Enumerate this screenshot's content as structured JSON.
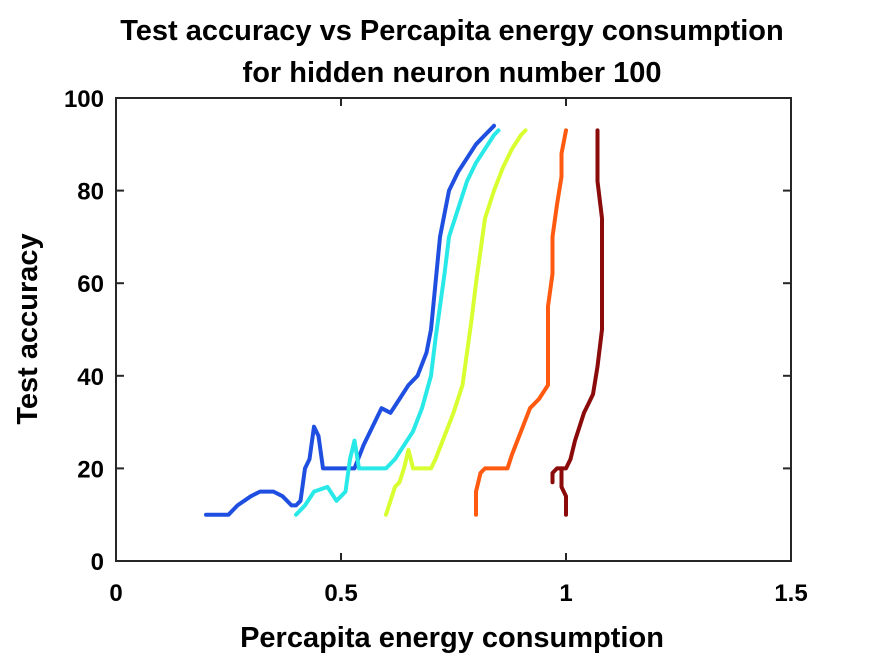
{
  "chart_data": {
    "type": "line",
    "title": "Test accuracy vs Percapita energy consumption",
    "subtitle": "for hidden neuron number 100",
    "xlabel": "Percapita energy consumption",
    "ylabel": "Test accuracy",
    "xlim": [
      0,
      1.5
    ],
    "ylim": [
      0,
      100
    ],
    "xticks": [
      0,
      0.5,
      1,
      1.5
    ],
    "xtick_labels": [
      "0",
      "0.5",
      "1",
      "1.5"
    ],
    "yticks": [
      0,
      20,
      40,
      60,
      80,
      100
    ],
    "ytick_labels": [
      "0",
      "20",
      "40",
      "60",
      "80",
      "100"
    ],
    "grid": false,
    "series": [
      {
        "color": "#1f4fe0",
        "points": [
          [
            0.2,
            10
          ],
          [
            0.25,
            10
          ],
          [
            0.27,
            12
          ],
          [
            0.3,
            14
          ],
          [
            0.32,
            15
          ],
          [
            0.35,
            15
          ],
          [
            0.37,
            14
          ],
          [
            0.39,
            12
          ],
          [
            0.4,
            12
          ],
          [
            0.41,
            13
          ],
          [
            0.42,
            20
          ],
          [
            0.43,
            22
          ],
          [
            0.44,
            29
          ],
          [
            0.45,
            27
          ],
          [
            0.46,
            20
          ],
          [
            0.5,
            20
          ],
          [
            0.53,
            20
          ],
          [
            0.55,
            25
          ],
          [
            0.57,
            29
          ],
          [
            0.59,
            33
          ],
          [
            0.61,
            32
          ],
          [
            0.63,
            35
          ],
          [
            0.65,
            38
          ],
          [
            0.67,
            40
          ],
          [
            0.69,
            45
          ],
          [
            0.7,
            50
          ],
          [
            0.71,
            60
          ],
          [
            0.72,
            70
          ],
          [
            0.73,
            75
          ],
          [
            0.74,
            80
          ],
          [
            0.76,
            84
          ],
          [
            0.78,
            87
          ],
          [
            0.8,
            90
          ],
          [
            0.82,
            92
          ],
          [
            0.84,
            94
          ]
        ]
      },
      {
        "color": "#29e8e8",
        "points": [
          [
            0.4,
            10
          ],
          [
            0.42,
            12
          ],
          [
            0.44,
            15
          ],
          [
            0.47,
            16
          ],
          [
            0.49,
            13
          ],
          [
            0.51,
            15
          ],
          [
            0.52,
            22
          ],
          [
            0.53,
            26
          ],
          [
            0.54,
            20
          ],
          [
            0.6,
            20
          ],
          [
            0.62,
            22
          ],
          [
            0.64,
            25
          ],
          [
            0.66,
            28
          ],
          [
            0.68,
            33
          ],
          [
            0.7,
            40
          ],
          [
            0.71,
            48
          ],
          [
            0.72,
            55
          ],
          [
            0.73,
            62
          ],
          [
            0.74,
            70
          ],
          [
            0.76,
            76
          ],
          [
            0.78,
            82
          ],
          [
            0.8,
            86
          ],
          [
            0.82,
            89
          ],
          [
            0.84,
            92
          ],
          [
            0.85,
            93
          ]
        ]
      },
      {
        "color": "#d8ff30",
        "points": [
          [
            0.6,
            10
          ],
          [
            0.61,
            13
          ],
          [
            0.62,
            16
          ],
          [
            0.63,
            17
          ],
          [
            0.64,
            20
          ],
          [
            0.65,
            24
          ],
          [
            0.66,
            20
          ],
          [
            0.7,
            20
          ],
          [
            0.71,
            22
          ],
          [
            0.73,
            27
          ],
          [
            0.75,
            32
          ],
          [
            0.77,
            38
          ],
          [
            0.78,
            45
          ],
          [
            0.79,
            52
          ],
          [
            0.8,
            60
          ],
          [
            0.81,
            67
          ],
          [
            0.82,
            74
          ],
          [
            0.84,
            80
          ],
          [
            0.86,
            85
          ],
          [
            0.88,
            89
          ],
          [
            0.9,
            92
          ],
          [
            0.91,
            93
          ]
        ]
      },
      {
        "color": "#ff5a10",
        "points": [
          [
            0.8,
            10
          ],
          [
            0.8,
            15
          ],
          [
            0.81,
            19
          ],
          [
            0.82,
            20
          ],
          [
            0.87,
            20
          ],
          [
            0.88,
            23
          ],
          [
            0.9,
            28
          ],
          [
            0.92,
            33
          ],
          [
            0.94,
            35
          ],
          [
            0.96,
            38
          ],
          [
            0.96,
            45
          ],
          [
            0.96,
            55
          ],
          [
            0.97,
            62
          ],
          [
            0.97,
            70
          ],
          [
            0.98,
            77
          ],
          [
            0.99,
            83
          ],
          [
            0.99,
            88
          ],
          [
            1.0,
            93
          ]
        ]
      },
      {
        "color": "#8b0a0a",
        "points": [
          [
            0.97,
            17
          ],
          [
            0.97,
            19
          ],
          [
            0.98,
            20
          ],
          [
            1.0,
            20
          ],
          [
            1.01,
            22
          ],
          [
            1.02,
            26
          ],
          [
            1.03,
            29
          ],
          [
            1.04,
            32
          ],
          [
            1.05,
            34
          ],
          [
            1.06,
            36
          ],
          [
            1.07,
            42
          ],
          [
            1.08,
            50
          ],
          [
            1.08,
            58
          ],
          [
            1.08,
            66
          ],
          [
            1.08,
            74
          ],
          [
            1.07,
            82
          ],
          [
            1.07,
            88
          ],
          [
            1.07,
            93
          ]
        ]
      },
      {
        "color": "#8b0a0a",
        "points": [
          [
            0.99,
            20
          ],
          [
            0.99,
            16
          ],
          [
            1.0,
            14
          ],
          [
            1.0,
            10
          ]
        ]
      }
    ]
  }
}
